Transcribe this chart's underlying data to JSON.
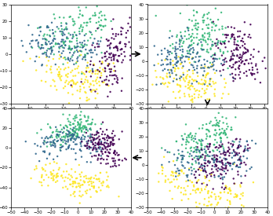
{
  "seed": 42,
  "n_points": 800,
  "colors": [
    "#FDE725",
    "#35B779",
    "#31688E",
    "#440154"
  ],
  "plot_configs": [
    {
      "xlim": [
        -40,
        30
      ],
      "ylim": [
        -30,
        30
      ]
    },
    {
      "xlim": [
        -40,
        42
      ],
      "ylim": [
        -30,
        40
      ]
    },
    {
      "xlim": [
        -50,
        40
      ],
      "ylim": [
        -60,
        40
      ]
    },
    {
      "xlim": [
        -50,
        40
      ],
      "ylim": [
        -30,
        40
      ]
    }
  ],
  "background_color": "#ffffff",
  "dot_size": 3,
  "alpha": 0.9
}
